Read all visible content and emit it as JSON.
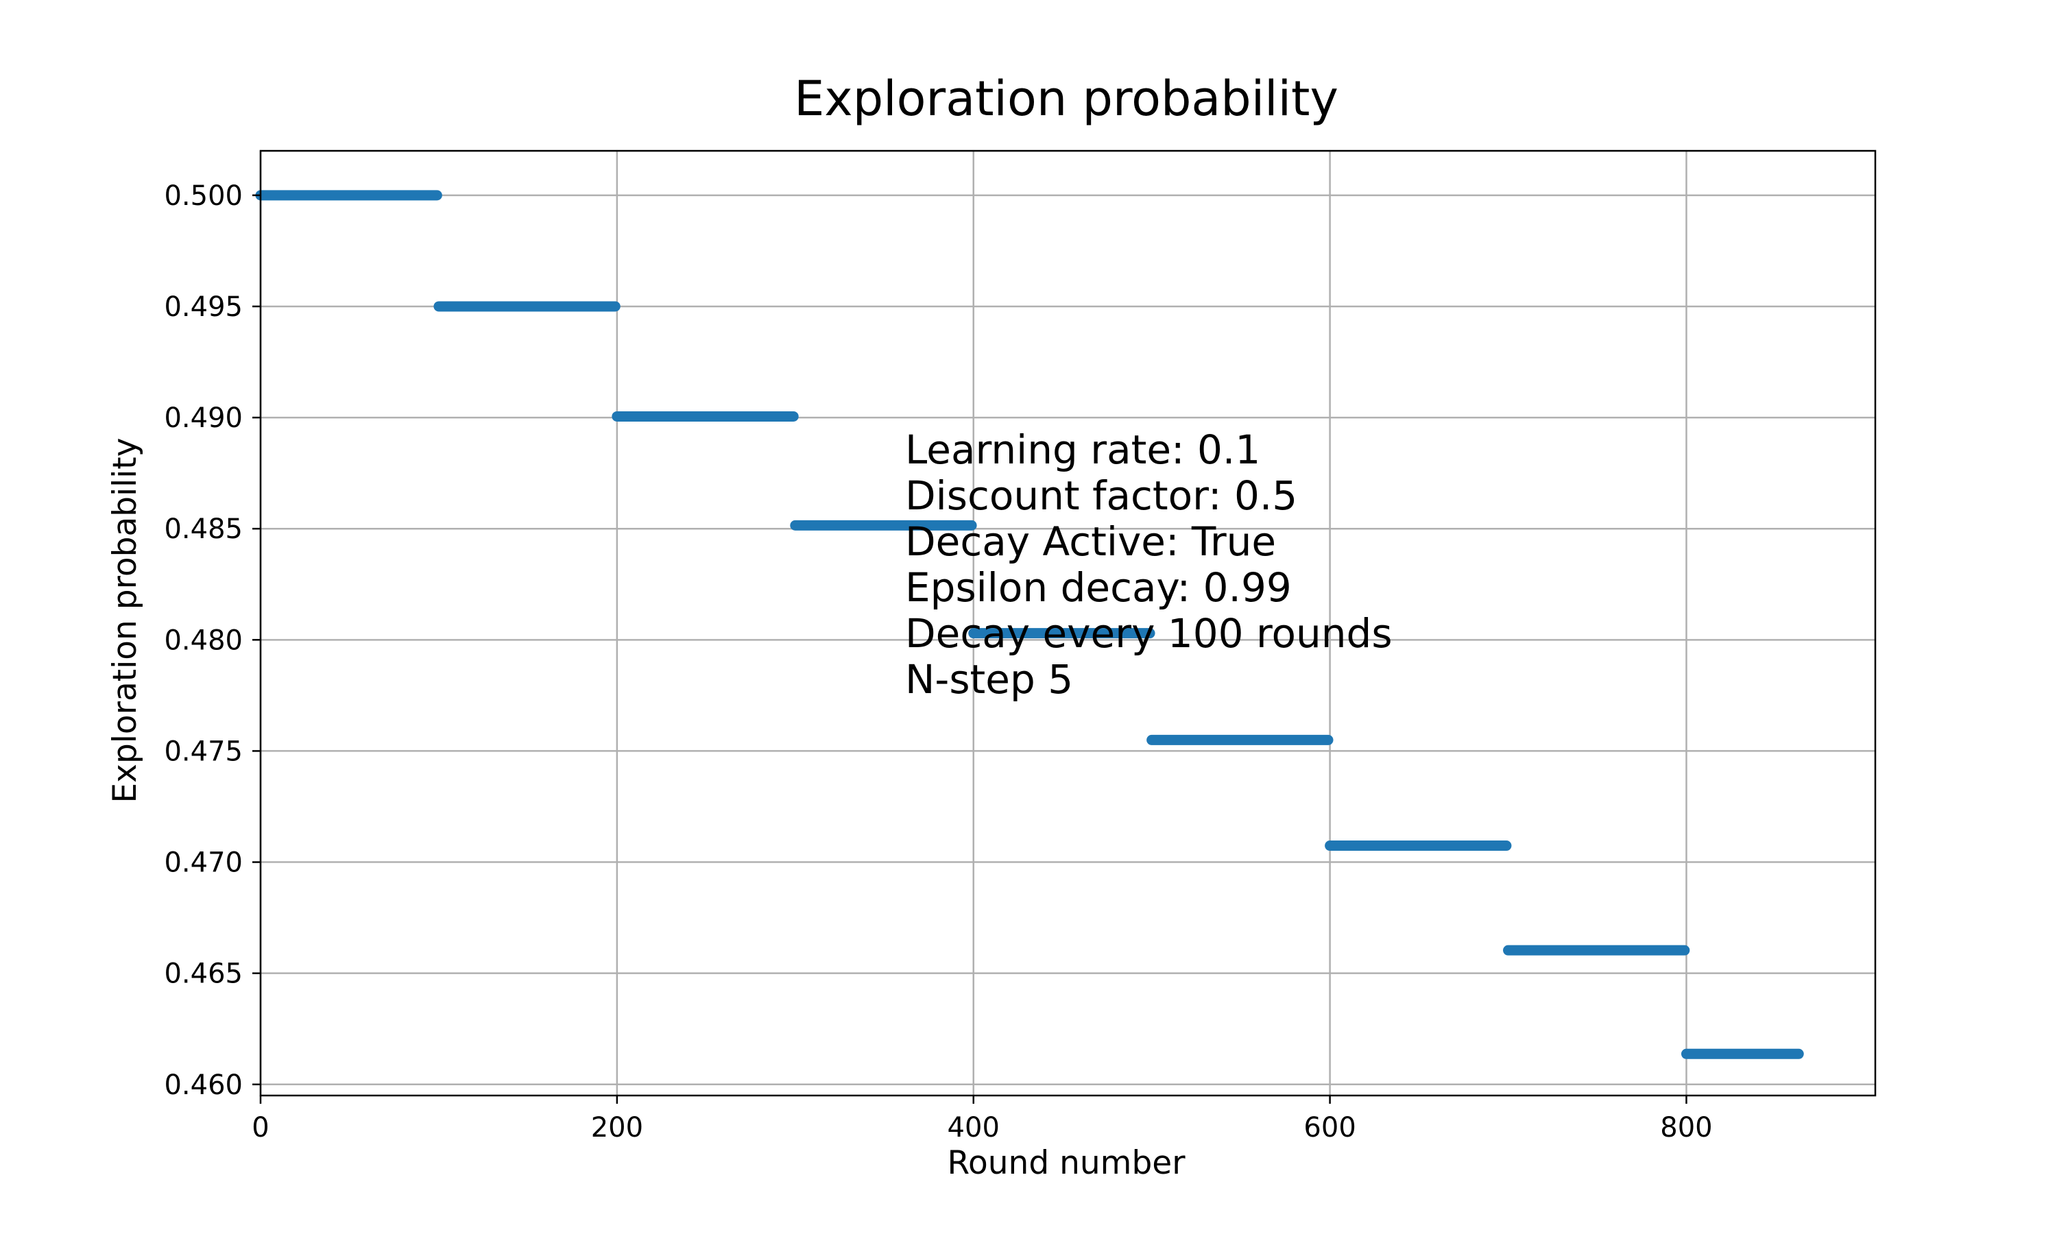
{
  "chart_data": {
    "type": "scatter",
    "title": "Exploration probability",
    "xlabel": "Round number",
    "ylabel": "Exploration probability",
    "xlim": [
      0,
      906
    ],
    "ylim": [
      0.4595,
      0.502
    ],
    "xticks": [
      0,
      200,
      400,
      600,
      800
    ],
    "xtick_labels": [
      "0",
      "200",
      "400",
      "600",
      "800"
    ],
    "yticks": [
      0.46,
      0.465,
      0.47,
      0.475,
      0.48,
      0.485,
      0.49,
      0.495,
      0.5
    ],
    "ytick_labels": [
      "0.460",
      "0.465",
      "0.470",
      "0.475",
      "0.480",
      "0.485",
      "0.490",
      "0.495",
      "0.500"
    ],
    "grid": true,
    "series_color": "#1f77b4",
    "series": [
      {
        "x_range": [
          0,
          863
        ],
        "step_size": 100,
        "segments": [
          {
            "x_start": 0,
            "x_end": 99,
            "value": 0.5
          },
          {
            "x_start": 100,
            "x_end": 199,
            "value": 0.495
          },
          {
            "x_start": 200,
            "x_end": 299,
            "value": 0.49005
          },
          {
            "x_start": 300,
            "x_end": 399,
            "value": 0.485149
          },
          {
            "x_start": 400,
            "x_end": 499,
            "value": 0.480298
          },
          {
            "x_start": 500,
            "x_end": 599,
            "value": 0.475495
          },
          {
            "x_start": 600,
            "x_end": 699,
            "value": 0.47074
          },
          {
            "x_start": 700,
            "x_end": 799,
            "value": 0.466033
          },
          {
            "x_start": 800,
            "x_end": 863,
            "value": 0.461372
          }
        ]
      }
    ],
    "annotation": {
      "lines": [
        "Learning rate: 0.1",
        "Discount factor: 0.5",
        "Decay Active: True",
        "Epsilon decay: 0.99",
        "Decay every 100 rounds",
        "N-step 5"
      ]
    }
  }
}
